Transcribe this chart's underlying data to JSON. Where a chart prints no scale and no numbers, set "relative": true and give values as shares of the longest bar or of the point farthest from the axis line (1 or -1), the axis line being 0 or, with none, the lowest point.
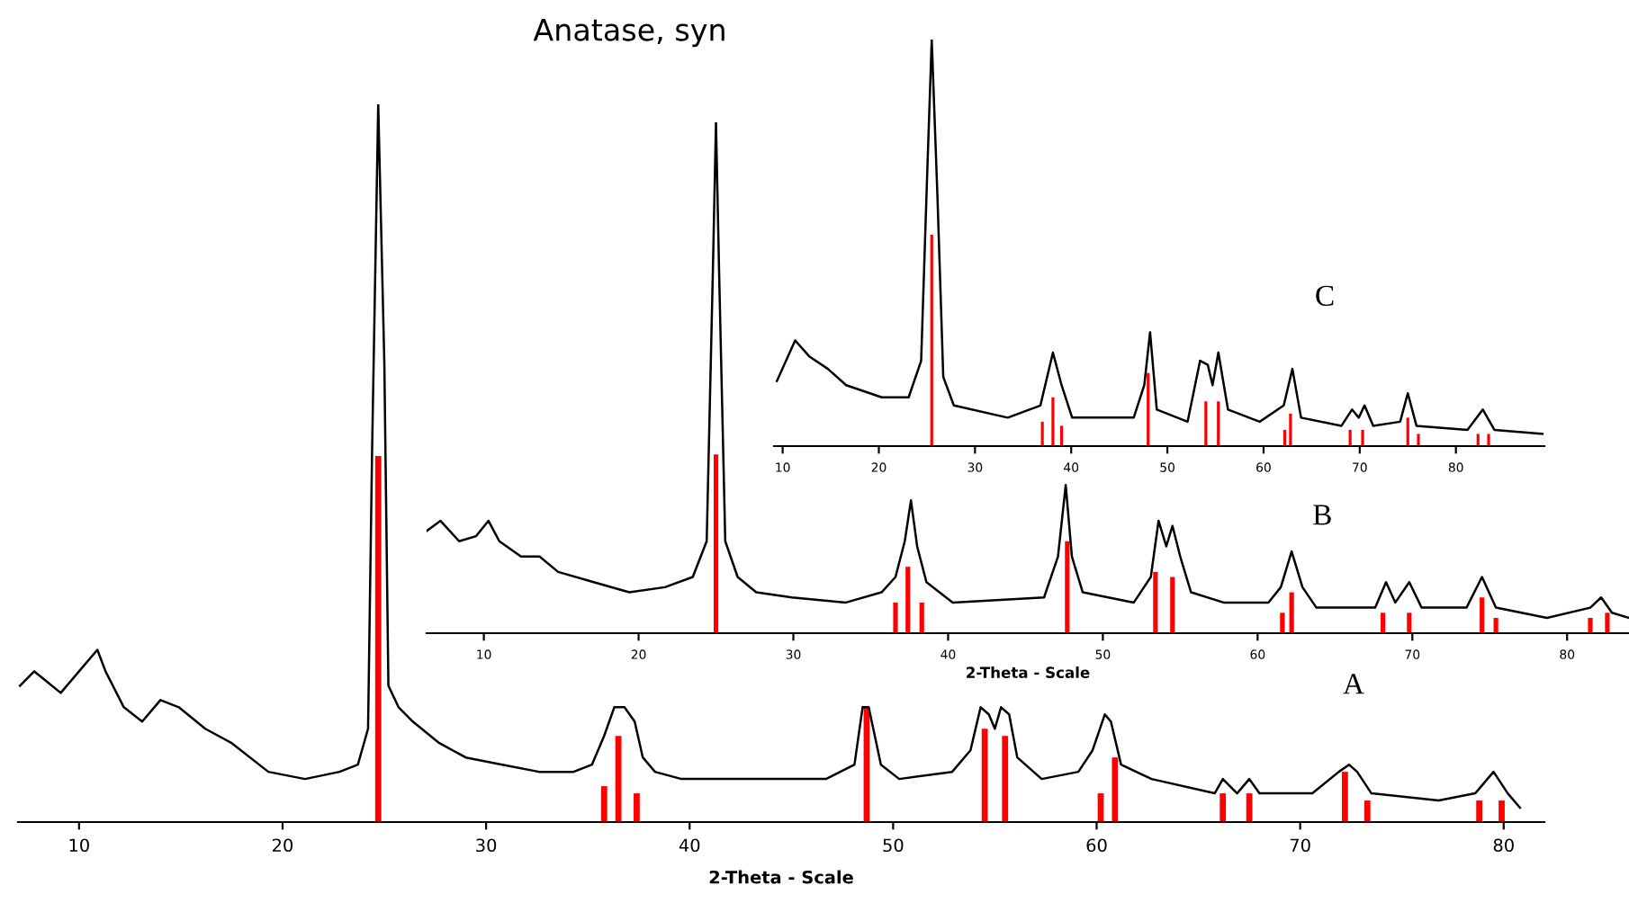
{
  "chart_data": [
    {
      "type": "line",
      "title": "Anatase, syn",
      "xlabel": "2-Theta - Scale",
      "relative": true,
      "annotations": [
        "A"
      ],
      "xlim": [
        7,
        82
      ],
      "xticks": [
        10,
        20,
        30,
        40,
        50,
        60,
        70,
        80
      ],
      "grid": false,
      "series": [
        {
          "color": "#000000",
          "x": [
            7.1,
            7.8,
            9.1,
            10.0,
            10.9,
            11.3,
            12.2,
            13.1,
            14.0,
            14.9,
            16.2,
            17.5,
            19.3,
            21.1,
            22.8,
            23.7,
            24.2,
            24.4,
            24.7,
            25.0,
            25.2,
            25.7,
            26.4,
            27.7,
            29.0,
            30.8,
            32.6,
            34.3,
            35.2,
            35.8,
            36.3,
            36.8,
            37.3,
            37.7,
            38.3,
            39.6,
            43.2,
            46.7,
            48.1,
            48.5,
            48.8,
            49.4,
            50.3,
            52.9,
            53.8,
            54.3,
            54.7,
            55.0,
            55.3,
            55.7,
            56.1,
            57.3,
            59.1,
            59.8,
            60.4,
            60.7,
            61.2,
            62.7,
            65.8,
            66.2,
            66.9,
            67.5,
            68.0,
            70.6,
            71.9,
            72.4,
            72.8,
            73.5,
            76.8,
            78.6,
            79.5,
            80.2,
            80.8
          ],
          "values": [
            0.19,
            0.21,
            0.18,
            0.21,
            0.24,
            0.21,
            0.16,
            0.14,
            0.17,
            0.16,
            0.13,
            0.11,
            0.07,
            0.06,
            0.07,
            0.08,
            0.13,
            0.52,
            1,
            0.64,
            0.19,
            0.16,
            0.14,
            0.11,
            0.09,
            0.08,
            0.07,
            0.07,
            0.08,
            0.12,
            0.16,
            0.16,
            0.14,
            0.09,
            0.07,
            0.06,
            0.06,
            0.06,
            0.08,
            0.16,
            0.16,
            0.08,
            0.06,
            0.07,
            0.1,
            0.16,
            0.15,
            0.13,
            0.16,
            0.15,
            0.09,
            0.06,
            0.07,
            0.1,
            0.15,
            0.14,
            0.08,
            0.06,
            0.04,
            0.06,
            0.04,
            0.06,
            0.04,
            0.04,
            0.07,
            0.08,
            0.07,
            0.04,
            0.03,
            0.04,
            0.07,
            0.04,
            0.02
          ]
        },
        {
          "type": "bar",
          "color": "#ff0000",
          "x": [
            24.7,
            35.8,
            36.5,
            37.4,
            48.7,
            54.5,
            55.5,
            60.2,
            60.9,
            66.2,
            67.5,
            72.2,
            73.3,
            78.8,
            79.9
          ],
          "values": [
            0.51,
            0.05,
            0.12,
            0.04,
            0.16,
            0.13,
            0.12,
            0.04,
            0.09,
            0.04,
            0.04,
            0.07,
            0.03,
            0.03,
            0.03
          ]
        }
      ]
    },
    {
      "type": "line",
      "xlabel": "2-Theta - Scale",
      "relative": true,
      "annotations": [
        "B"
      ],
      "xlim": [
        6.3,
        84
      ],
      "xticks": [
        10,
        20,
        30,
        40,
        50,
        60,
        70,
        80
      ],
      "grid": false,
      "series": [
        {
          "color": "#000000",
          "x": [
            6.3,
            7.2,
            8.4,
            9.5,
            10.3,
            11.0,
            12.4,
            13.6,
            14.8,
            17.1,
            19.4,
            21.7,
            23.5,
            24.4,
            24.8,
            25.0,
            25.2,
            25.6,
            26.4,
            27.6,
            29.9,
            33.4,
            35.7,
            36.6,
            37.2,
            37.6,
            38.0,
            38.6,
            40.3,
            46.2,
            47.1,
            47.6,
            48.0,
            48.7,
            52.0,
            53.1,
            53.6,
            54.1,
            54.5,
            55.0,
            55.7,
            57.8,
            60.7,
            61.5,
            62.2,
            62.9,
            63.8,
            67.6,
            68.3,
            68.9,
            69.8,
            70.6,
            73.5,
            74.5,
            75.4,
            78.7,
            81.5,
            82.2,
            82.9,
            84.0
          ],
          "values": [
            0.2,
            0.22,
            0.18,
            0.19,
            0.22,
            0.18,
            0.15,
            0.15,
            0.12,
            0.1,
            0.08,
            0.09,
            0.11,
            0.18,
            0.71,
            1,
            0.71,
            0.18,
            0.11,
            0.08,
            0.07,
            0.06,
            0.08,
            0.11,
            0.18,
            0.26,
            0.17,
            0.1,
            0.06,
            0.07,
            0.15,
            0.29,
            0.15,
            0.08,
            0.06,
            0.11,
            0.22,
            0.17,
            0.21,
            0.15,
            0.08,
            0.06,
            0.06,
            0.09,
            0.16,
            0.09,
            0.05,
            0.05,
            0.1,
            0.06,
            0.1,
            0.05,
            0.05,
            0.11,
            0.05,
            0.03,
            0.05,
            0.07,
            0.04,
            0.03
          ]
        },
        {
          "type": "bar",
          "color": "#ff0000",
          "x": [
            25.0,
            36.6,
            37.4,
            38.3,
            47.7,
            53.4,
            54.5,
            61.6,
            62.2,
            68.1,
            69.8,
            74.5,
            75.4,
            81.5,
            82.6
          ],
          "values": [
            0.35,
            0.06,
            0.13,
            0.06,
            0.18,
            0.12,
            0.11,
            0.04,
            0.08,
            0.04,
            0.04,
            0.07,
            0.03,
            0.03,
            0.04
          ]
        }
      ]
    },
    {
      "type": "line",
      "relative": true,
      "annotations": [
        "C"
      ],
      "xlim": [
        9.1,
        89.2
      ],
      "xticks": [
        10,
        20,
        30,
        40,
        50,
        60,
        70,
        80
      ],
      "grid": false,
      "series": [
        {
          "color": "#000000",
          "x": [
            9.4,
            11.3,
            12.8,
            14.7,
            16.6,
            20.3,
            23.1,
            24.4,
            25.0,
            25.5,
            26.1,
            26.7,
            27.8,
            33.4,
            36.8,
            38.1,
            39.0,
            40.1,
            46.5,
            47.6,
            48.2,
            48.9,
            52.1,
            53.4,
            54.2,
            54.7,
            55.3,
            56.3,
            59.6,
            62.1,
            63.0,
            63.9,
            68.1,
            69.2,
            69.9,
            70.5,
            71.4,
            74.2,
            75.0,
            75.9,
            81.2,
            82.8,
            84.0,
            89.0
          ],
          "values": [
            0.16,
            0.26,
            0.22,
            0.19,
            0.15,
            0.12,
            0.12,
            0.21,
            0.65,
            1,
            0.61,
            0.17,
            0.1,
            0.07,
            0.1,
            0.23,
            0.15,
            0.07,
            0.07,
            0.15,
            0.28,
            0.09,
            0.06,
            0.21,
            0.2,
            0.15,
            0.23,
            0.09,
            0.06,
            0.1,
            0.19,
            0.07,
            0.05,
            0.09,
            0.07,
            0.1,
            0.05,
            0.06,
            0.13,
            0.05,
            0.04,
            0.09,
            0.04,
            0.03
          ]
        },
        {
          "type": "bar",
          "color": "#ff0000",
          "x": [
            25.5,
            37.0,
            38.1,
            39.0,
            48.0,
            54.0,
            55.3,
            62.2,
            62.8,
            69.0,
            70.3,
            75.0,
            76.1,
            82.3,
            83.4
          ],
          "values": [
            0.52,
            0.06,
            0.12,
            0.05,
            0.18,
            0.11,
            0.11,
            0.04,
            0.08,
            0.04,
            0.04,
            0.07,
            0.03,
            0.03,
            0.03
          ]
        }
      ]
    }
  ]
}
